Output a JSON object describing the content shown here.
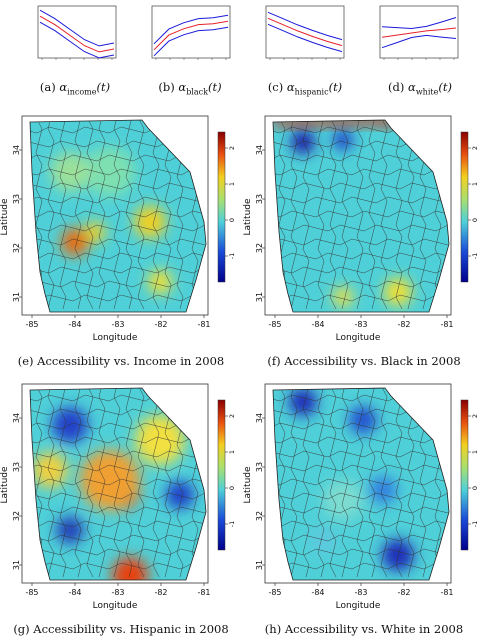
{
  "small_captions": [
    {
      "tag": "(a)",
      "sym": "α",
      "sub": "income",
      "arg": "(t)"
    },
    {
      "tag": "(b)",
      "sym": "α",
      "sub": "black",
      "arg": "(t)"
    },
    {
      "tag": "(c)",
      "sym": "α",
      "sub": "hispanic",
      "arg": "(t)"
    },
    {
      "tag": "(d)",
      "sym": "α",
      "sub": "white",
      "arg": "(t)"
    }
  ],
  "map_captions": [
    "(e) Accessibility vs. Income in 2008",
    "(f) Accessibility vs. Black in 2008",
    "(g) Accessibility vs. Hispanic in 2008",
    "(h) Accessibility vs. White in 2008"
  ],
  "axis": {
    "xlabel": "Longitude",
    "ylabel": "Latitude",
    "xticks": [
      "-85",
      "-84",
      "-83",
      "-82",
      "-81"
    ],
    "yticks": [
      "34",
      "33",
      "32",
      "31"
    ],
    "colorbar_ticks": [
      "2",
      "1",
      "0",
      "-1"
    ]
  },
  "colors": {
    "curve_center": "#e8202a",
    "curve_band": "#1a1adb",
    "low": "#1a1aa8",
    "mid": "#4fd0d8",
    "high": "#f2d020",
    "peak": "#c81818"
  },
  "chart_data": [
    {
      "type": "line",
      "panel": "a",
      "series": [
        {
          "values": [
            0.9,
            0.7,
            0.45,
            0.2,
            0.05,
            0.12
          ]
        }
      ]
    },
    {
      "type": "line",
      "panel": "b",
      "series": [
        {
          "values": [
            0.1,
            0.45,
            0.6,
            0.7,
            0.72,
            0.78
          ]
        }
      ]
    },
    {
      "type": "line",
      "panel": "c",
      "series": [
        {
          "values": [
            0.85,
            0.7,
            0.55,
            0.42,
            0.3,
            0.2
          ]
        }
      ]
    },
    {
      "type": "line",
      "panel": "d",
      "series": [
        {
          "values": [
            0.4,
            0.45,
            0.5,
            0.55,
            0.58,
            0.62
          ]
        }
      ]
    }
  ]
}
